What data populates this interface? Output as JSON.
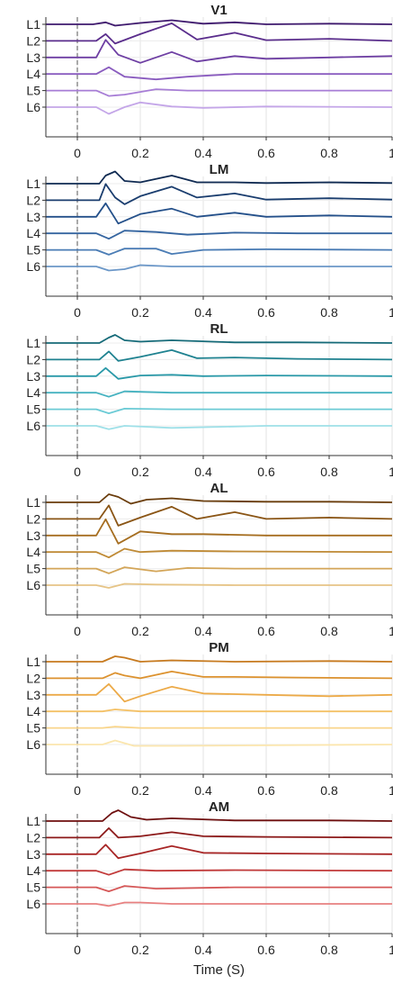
{
  "chart_data": [
    {
      "type": "line",
      "title": "V1",
      "xlabel": "",
      "xlim": [
        -0.1,
        1.0
      ],
      "xticks": [
        "0",
        "0.2",
        "0.4",
        "0.6",
        "0.8",
        "1"
      ],
      "yticklabels": [
        "L1",
        "L2",
        "L3",
        "L4",
        "L5",
        "L6"
      ],
      "stimulus_line_x": 0,
      "series": [
        {
          "name": "L1",
          "color": "#3f1a6e",
          "x": [
            -0.1,
            0.05,
            0.09,
            0.12,
            0.2,
            0.3,
            0.4,
            0.5,
            0.6,
            0.8,
            1.0
          ],
          "y": [
            0,
            0,
            0.15,
            -0.1,
            0.1,
            0.3,
            0.05,
            0.15,
            0,
            0.05,
            0
          ]
        },
        {
          "name": "L2",
          "color": "#5a2d8c",
          "x": [
            -0.1,
            0.06,
            0.09,
            0.12,
            0.2,
            0.3,
            0.38,
            0.5,
            0.6,
            0.8,
            1.0
          ],
          "y": [
            0,
            0,
            0.5,
            -0.2,
            0.5,
            1.3,
            0.1,
            0.6,
            0.05,
            0.15,
            0
          ]
        },
        {
          "name": "L3",
          "color": "#6e3fa3",
          "x": [
            -0.1,
            0.06,
            0.09,
            0.13,
            0.2,
            0.3,
            0.38,
            0.5,
            0.6,
            0.8,
            1.0
          ],
          "y": [
            0,
            0,
            1.3,
            0.2,
            -0.4,
            0.4,
            -0.3,
            0.1,
            -0.1,
            0,
            0.1
          ]
        },
        {
          "name": "L4",
          "color": "#8a5cbf",
          "x": [
            -0.1,
            0.06,
            0.1,
            0.15,
            0.25,
            0.35,
            0.5,
            0.7,
            1.0
          ],
          "y": [
            0,
            0,
            0.5,
            -0.2,
            -0.4,
            -0.2,
            0,
            0,
            0
          ]
        },
        {
          "name": "L5",
          "color": "#a77dd6",
          "x": [
            -0.1,
            0.06,
            0.1,
            0.15,
            0.25,
            0.35,
            0.5,
            0.7,
            1.0
          ],
          "y": [
            0,
            0,
            -0.4,
            -0.3,
            0.1,
            0,
            0,
            0,
            0
          ]
        },
        {
          "name": "L6",
          "color": "#c4a6e8",
          "x": [
            -0.1,
            0.06,
            0.1,
            0.15,
            0.2,
            0.3,
            0.4,
            0.6,
            1.0
          ],
          "y": [
            0,
            0,
            -0.5,
            0,
            0.35,
            0.05,
            -0.05,
            0.05,
            0
          ]
        }
      ]
    },
    {
      "type": "line",
      "title": "LM",
      "xlabel": "",
      "xlim": [
        -0.1,
        1.0
      ],
      "xticks": [
        "0",
        "0.2",
        "0.4",
        "0.6",
        "0.8",
        "1"
      ],
      "yticklabels": [
        "L1",
        "L2",
        "L3",
        "L4",
        "L5",
        "L6"
      ],
      "stimulus_line_x": 0,
      "series": [
        {
          "name": "L1",
          "color": "#0f2a52",
          "x": [
            -0.1,
            0.07,
            0.09,
            0.12,
            0.15,
            0.2,
            0.3,
            0.38,
            0.5,
            0.6,
            0.8,
            1.0
          ],
          "y": [
            0,
            0,
            0.6,
            0.9,
            0.2,
            0.1,
            0.6,
            0.1,
            0.1,
            0.05,
            0.1,
            0.05
          ]
        },
        {
          "name": "L2",
          "color": "#1a3d6e",
          "x": [
            -0.1,
            0.07,
            0.09,
            0.12,
            0.15,
            0.2,
            0.3,
            0.38,
            0.5,
            0.6,
            0.8,
            1.0
          ],
          "y": [
            0,
            0,
            1.2,
            0.2,
            -0.3,
            0.3,
            1.0,
            0.2,
            0.5,
            0.05,
            0.15,
            0.05
          ]
        },
        {
          "name": "L3",
          "color": "#24508a",
          "x": [
            -0.1,
            0.06,
            0.09,
            0.13,
            0.2,
            0.3,
            0.38,
            0.5,
            0.6,
            0.8,
            1.0
          ],
          "y": [
            0,
            0,
            1.0,
            -0.5,
            0.2,
            0.6,
            0,
            0.3,
            0,
            0.1,
            0
          ]
        },
        {
          "name": "L4",
          "color": "#3565a0",
          "x": [
            -0.1,
            0.06,
            0.1,
            0.15,
            0.25,
            0.35,
            0.5,
            0.7,
            1.0
          ],
          "y": [
            0,
            0,
            -0.4,
            0.2,
            0.1,
            -0.1,
            0.05,
            0,
            0
          ]
        },
        {
          "name": "L5",
          "color": "#4a7cb5",
          "x": [
            -0.1,
            0.06,
            0.1,
            0.15,
            0.25,
            0.3,
            0.4,
            0.6,
            1.0
          ],
          "y": [
            0,
            0,
            -0.35,
            0.1,
            0.1,
            -0.3,
            0,
            0.05,
            0
          ]
        },
        {
          "name": "L6",
          "color": "#6b97c8",
          "x": [
            -0.1,
            0.06,
            0.1,
            0.15,
            0.2,
            0.3,
            0.4,
            0.6,
            1.0
          ],
          "y": [
            0,
            0,
            -0.3,
            -0.2,
            0.1,
            0,
            0,
            0,
            0
          ]
        }
      ]
    },
    {
      "type": "line",
      "title": "RL",
      "xlabel": "",
      "xlim": [
        -0.1,
        1.0
      ],
      "xticks": [
        "0",
        "0.2",
        "0.4",
        "0.6",
        "0.8",
        "1"
      ],
      "yticklabels": [
        "L1",
        "L2",
        "L3",
        "L4",
        "L5",
        "L6"
      ],
      "stimulus_line_x": 0,
      "series": [
        {
          "name": "L1",
          "color": "#156a78",
          "x": [
            -0.1,
            0.07,
            0.1,
            0.12,
            0.15,
            0.2,
            0.3,
            0.5,
            0.7,
            1.0
          ],
          "y": [
            0,
            0,
            0.4,
            0.6,
            0.2,
            0.1,
            0.2,
            0.05,
            0.05,
            0
          ]
        },
        {
          "name": "L2",
          "color": "#1f8290",
          "x": [
            -0.1,
            0.07,
            0.1,
            0.13,
            0.2,
            0.3,
            0.38,
            0.5,
            0.7,
            1.0
          ],
          "y": [
            0,
            0,
            0.6,
            -0.1,
            0.2,
            0.7,
            0.1,
            0.15,
            0.05,
            0
          ]
        },
        {
          "name": "L3",
          "color": "#2a99a8",
          "x": [
            -0.1,
            0.06,
            0.09,
            0.13,
            0.2,
            0.3,
            0.4,
            0.6,
            1.0
          ],
          "y": [
            0,
            0,
            0.6,
            -0.2,
            0.05,
            0.1,
            0,
            0.05,
            0
          ]
        },
        {
          "name": "L4",
          "color": "#45b2c0",
          "x": [
            -0.1,
            0.06,
            0.1,
            0.15,
            0.3,
            0.6,
            1.0
          ],
          "y": [
            0,
            0,
            -0.3,
            0.1,
            0,
            0,
            0
          ]
        },
        {
          "name": "L5",
          "color": "#6ccbd6",
          "x": [
            -0.1,
            0.06,
            0.1,
            0.15,
            0.3,
            0.6,
            1.0
          ],
          "y": [
            0,
            0,
            -0.3,
            0.05,
            0,
            0,
            0
          ]
        },
        {
          "name": "L6",
          "color": "#9ee0e8",
          "x": [
            -0.1,
            0.06,
            0.1,
            0.15,
            0.3,
            0.6,
            1.0
          ],
          "y": [
            0,
            0,
            -0.25,
            0,
            -0.15,
            0,
            0
          ]
        }
      ]
    },
    {
      "type": "line",
      "title": "AL",
      "xlabel": "",
      "xlim": [
        -0.1,
        1.0
      ],
      "xticks": [
        "0",
        "0.2",
        "0.4",
        "0.6",
        "0.8",
        "1"
      ],
      "yticklabels": [
        "L1",
        "L2",
        "L3",
        "L4",
        "L5",
        "L6"
      ],
      "stimulus_line_x": 0,
      "series": [
        {
          "name": "L1",
          "color": "#6a3d0c",
          "x": [
            -0.1,
            0.07,
            0.1,
            0.13,
            0.17,
            0.22,
            0.3,
            0.4,
            0.6,
            0.8,
            1.0
          ],
          "y": [
            0,
            0,
            0.6,
            0.4,
            -0.1,
            0.2,
            0.3,
            0.1,
            0.05,
            0.05,
            0
          ]
        },
        {
          "name": "L2",
          "color": "#8a5515",
          "x": [
            -0.1,
            0.07,
            0.1,
            0.13,
            0.2,
            0.3,
            0.38,
            0.5,
            0.6,
            0.8,
            1.0
          ],
          "y": [
            0,
            0,
            1.0,
            -0.5,
            0.1,
            0.9,
            0,
            0.5,
            0,
            0.1,
            0
          ]
        },
        {
          "name": "L3",
          "color": "#a66e20",
          "x": [
            -0.1,
            0.06,
            0.09,
            0.13,
            0.2,
            0.3,
            0.4,
            0.6,
            1.0
          ],
          "y": [
            0,
            0,
            1.2,
            -0.6,
            0.3,
            0.1,
            0.1,
            0,
            0
          ]
        },
        {
          "name": "L4",
          "color": "#bf8a35",
          "x": [
            -0.1,
            0.06,
            0.1,
            0.15,
            0.2,
            0.3,
            0.5,
            1.0
          ],
          "y": [
            0,
            0,
            -0.4,
            0.25,
            0,
            0.1,
            0.05,
            0
          ]
        },
        {
          "name": "L5",
          "color": "#d3a558",
          "x": [
            -0.1,
            0.06,
            0.1,
            0.15,
            0.25,
            0.35,
            0.5,
            1.0
          ],
          "y": [
            0,
            0,
            -0.35,
            0.1,
            -0.2,
            0.05,
            0,
            0
          ]
        },
        {
          "name": "L6",
          "color": "#e6c486",
          "x": [
            -0.1,
            0.06,
            0.1,
            0.15,
            0.25,
            0.5,
            1.0
          ],
          "y": [
            0,
            0,
            -0.2,
            0.1,
            0.05,
            0,
            0
          ]
        }
      ]
    },
    {
      "type": "line",
      "title": "PM",
      "xlabel": "",
      "xlim": [
        -0.1,
        1.0
      ],
      "xticks": [
        "0",
        "0.2",
        "0.4",
        "0.6",
        "0.8",
        "1"
      ],
      "yticklabels": [
        "L1",
        "L2",
        "L3",
        "L4",
        "L5",
        "L6"
      ],
      "stimulus_line_x": 0,
      "series": [
        {
          "name": "L1",
          "color": "#c77a1f",
          "x": [
            -0.1,
            0.08,
            0.12,
            0.15,
            0.2,
            0.3,
            0.5,
            0.8,
            1.0
          ],
          "y": [
            0,
            0,
            0.4,
            0.3,
            0,
            0.1,
            0,
            0.05,
            0
          ]
        },
        {
          "name": "L2",
          "color": "#dc922f",
          "x": [
            -0.1,
            0.08,
            0.12,
            0.15,
            0.2,
            0.3,
            0.4,
            0.5,
            0.7,
            1.0
          ],
          "y": [
            0,
            0,
            0.4,
            0.2,
            0,
            0.5,
            0.1,
            0.1,
            0.05,
            0
          ]
        },
        {
          "name": "L3",
          "color": "#ecaa48",
          "x": [
            -0.1,
            0.06,
            0.1,
            0.15,
            0.2,
            0.3,
            0.4,
            0.6,
            0.8,
            1.0
          ],
          "y": [
            0,
            0,
            0.8,
            -0.5,
            -0.1,
            0.6,
            0.1,
            0,
            -0.1,
            0
          ]
        },
        {
          "name": "L4",
          "color": "#f4c166",
          "x": [
            -0.1,
            0.08,
            0.12,
            0.2,
            0.4,
            1.0
          ],
          "y": [
            0,
            0,
            0.15,
            0,
            0,
            0
          ]
        },
        {
          "name": "L5",
          "color": "#f9d58a",
          "x": [
            -0.1,
            0.08,
            0.12,
            0.2,
            0.4,
            1.0
          ],
          "y": [
            0,
            0,
            0.1,
            0,
            0,
            0
          ]
        },
        {
          "name": "L6",
          "color": "#fbe6ae",
          "x": [
            -0.1,
            0.08,
            0.12,
            0.18,
            0.3,
            1.0
          ],
          "y": [
            0,
            0,
            0.3,
            -0.1,
            -0.1,
            0
          ]
        }
      ]
    },
    {
      "type": "line",
      "title": "AM",
      "xlabel": "Time (S)",
      "xlim": [
        -0.1,
        1.0
      ],
      "xticks": [
        "0",
        "0.2",
        "0.4",
        "0.6",
        "0.8",
        "1"
      ],
      "yticklabels": [
        "L1",
        "L2",
        "L3",
        "L4",
        "L5",
        "L6"
      ],
      "stimulus_line_x": 0,
      "series": [
        {
          "name": "L1",
          "color": "#6e0f0f",
          "x": [
            -0.1,
            0.08,
            0.11,
            0.13,
            0.17,
            0.22,
            0.3,
            0.5,
            0.8,
            1.0
          ],
          "y": [
            0,
            0,
            0.6,
            0.8,
            0.3,
            0.1,
            0.2,
            0.05,
            0.05,
            0
          ]
        },
        {
          "name": "L2",
          "color": "#8c1919",
          "x": [
            -0.1,
            0.07,
            0.1,
            0.13,
            0.2,
            0.3,
            0.4,
            0.6,
            1.0
          ],
          "y": [
            0,
            0,
            0.7,
            0,
            0.1,
            0.4,
            0.1,
            0.05,
            0
          ]
        },
        {
          "name": "L3",
          "color": "#a82626",
          "x": [
            -0.1,
            0.06,
            0.09,
            0.13,
            0.2,
            0.3,
            0.4,
            0.6,
            1.0
          ],
          "y": [
            0,
            0,
            0.7,
            -0.3,
            0.05,
            0.6,
            0.1,
            0.05,
            0
          ]
        },
        {
          "name": "L4",
          "color": "#c23a3a",
          "x": [
            -0.1,
            0.06,
            0.1,
            0.15,
            0.25,
            0.5,
            1.0
          ],
          "y": [
            0,
            0,
            -0.3,
            0.1,
            0,
            0.05,
            0
          ]
        },
        {
          "name": "L5",
          "color": "#d65858",
          "x": [
            -0.1,
            0.06,
            0.1,
            0.15,
            0.25,
            0.5,
            1.0
          ],
          "y": [
            0,
            0,
            -0.3,
            0.1,
            -0.1,
            0,
            0
          ]
        },
        {
          "name": "L6",
          "color": "#e88080",
          "x": [
            -0.1,
            0.06,
            0.1,
            0.15,
            0.2,
            0.3,
            1.0
          ],
          "y": [
            0,
            0,
            -0.15,
            0.1,
            0.1,
            0,
            0
          ]
        }
      ]
    }
  ]
}
